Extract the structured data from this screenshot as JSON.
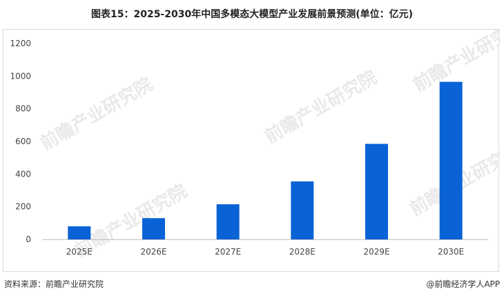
{
  "title": "图表15：2025-2030年中国多模态大模型产业发展前景预测(单位：亿元)",
  "footer": {
    "source": "资料来源：前瞻产业研究院",
    "brand": "@前瞻经济学人APP"
  },
  "watermark": {
    "text": "前瞻产业研究院"
  },
  "colors": {
    "bar": "#0a63d6",
    "axis": "#bfbfbf",
    "tick_text": "#444444",
    "watermark": "#e9e9e9"
  },
  "chart_data": {
    "type": "bar",
    "title": "图表15：2025-2030年中国多模态大模型产业发展前景预测(单位：亿元)",
    "xlabel": "",
    "ylabel": "",
    "categories": [
      "2025E",
      "2026E",
      "2027E",
      "2028E",
      "2029E",
      "2030E"
    ],
    "values": [
      80,
      130,
      215,
      355,
      585,
      965
    ],
    "ylim": [
      0,
      1200
    ],
    "yticks": [
      0,
      200,
      400,
      600,
      800,
      1000,
      1200
    ],
    "grid": false,
    "legend": "none"
  }
}
